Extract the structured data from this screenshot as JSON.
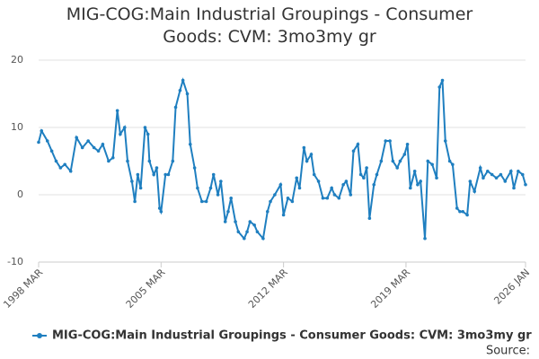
{
  "chart_data": {
    "type": "line",
    "title": "MIG-COG:Main Industrial Groupings - Consumer Goods: CVM: 3mo3my gr",
    "source": "Source:",
    "x": [
      "1998-03",
      "1998-05",
      "1998-09",
      "1998-12",
      "1999-03",
      "1999-06",
      "1999-09",
      "2000-01",
      "2000-05",
      "2000-09",
      "2001-01",
      "2001-05",
      "2001-08",
      "2001-11",
      "2002-03",
      "2002-06",
      "2002-09",
      "2002-11",
      "2003-02",
      "2003-04",
      "2003-07",
      "2003-09",
      "2003-11",
      "2004-01",
      "2004-04",
      "2004-06",
      "2004-07",
      "2004-10",
      "2004-12",
      "2005-02",
      "2005-03",
      "2005-06",
      "2005-08",
      "2005-11",
      "2006-01",
      "2006-04",
      "2006-06",
      "2006-09",
      "2006-11",
      "2007-02",
      "2007-04",
      "2007-07",
      "2007-10",
      "2008-01",
      "2008-03",
      "2008-06",
      "2008-08",
      "2008-11",
      "2009-01",
      "2009-03",
      "2009-06",
      "2009-08",
      "2009-12",
      "2010-02",
      "2010-04",
      "2010-07",
      "2010-09",
      "2011-01",
      "2011-04",
      "2011-06",
      "2011-09",
      "2012-01",
      "2012-03",
      "2012-06",
      "2012-09",
      "2012-12",
      "2013-02",
      "2013-05",
      "2013-07",
      "2013-10",
      "2013-12",
      "2014-03",
      "2014-06",
      "2014-09",
      "2014-12",
      "2015-02",
      "2015-05",
      "2015-08",
      "2015-10",
      "2016-01",
      "2016-03",
      "2016-06",
      "2016-08",
      "2016-10",
      "2016-12",
      "2017-02",
      "2017-05",
      "2017-07",
      "2017-10",
      "2018-01",
      "2018-04",
      "2018-06",
      "2018-09",
      "2018-11",
      "2019-02",
      "2019-04",
      "2019-06",
      "2019-09",
      "2019-11",
      "2020-01",
      "2020-04",
      "2020-06",
      "2020-09",
      "2020-12",
      "2021-02",
      "2021-04",
      "2021-06",
      "2021-09",
      "2021-11",
      "2022-02",
      "2022-04",
      "2022-06",
      "2022-09",
      "2022-11",
      "2023-02",
      "2023-06",
      "2023-08",
      "2023-11",
      "2024-02",
      "2024-05",
      "2024-08",
      "2024-11",
      "2025-03",
      "2025-05",
      "2025-08",
      "2025-11",
      "2026-01"
    ],
    "series": [
      {
        "name": "MIG-COG:Main Industrial Groupings - Consumer Goods: CVM: 3mo3my gr",
        "color": "#1f7fc0",
        "values": [
          7.8,
          9.5,
          8,
          6.5,
          5,
          4,
          4.5,
          3.5,
          8.5,
          7,
          8,
          7,
          6.5,
          7.5,
          5,
          5.5,
          12.5,
          9,
          10,
          5,
          2,
          -1,
          3,
          1,
          10,
          9,
          5,
          3,
          4,
          -2,
          -2.5,
          3,
          3,
          5,
          13,
          15.5,
          17,
          15,
          7.5,
          4,
          1,
          -1,
          -1,
          1,
          3,
          0,
          2,
          -4,
          -2.5,
          -0.5,
          -4,
          -5.5,
          -6.5,
          -5.5,
          -4,
          -4.5,
          -5.5,
          -6.5,
          -2.5,
          -1,
          0,
          1.5,
          -3,
          -0.5,
          -1,
          2.5,
          1,
          7,
          5,
          6,
          3,
          2,
          -0.5,
          -0.5,
          1,
          0,
          -0.5,
          1.5,
          2,
          0,
          6.5,
          7.5,
          3,
          2.5,
          4,
          -3.5,
          1.5,
          3,
          5,
          8,
          8,
          5,
          4,
          5,
          6,
          7.5,
          1,
          3.5,
          1.5,
          2,
          -6.5,
          5,
          4.5,
          2.5,
          16,
          17,
          8,
          5,
          4.5,
          -2,
          -2.5,
          -2.5,
          -3,
          2,
          0.5,
          4,
          2.5,
          3.5,
          3,
          2.5,
          3,
          2,
          3.5,
          1,
          3.5,
          3,
          1.5
        ]
      }
    ],
    "xlim": [
      "1998-03",
      "2026-01"
    ],
    "xticks": [
      {
        "value": "1998-03",
        "label": "1998 MAR"
      },
      {
        "value": "2005-03",
        "label": "2005 MAR"
      },
      {
        "value": "2012-03",
        "label": "2012 MAR"
      },
      {
        "value": "2019-03",
        "label": "2019 MAR"
      },
      {
        "value": "2026-01",
        "label": "2026 JAN"
      }
    ],
    "ylim": [
      -10,
      20
    ],
    "yticks": [
      -10,
      0,
      10,
      20
    ],
    "grid": true
  }
}
